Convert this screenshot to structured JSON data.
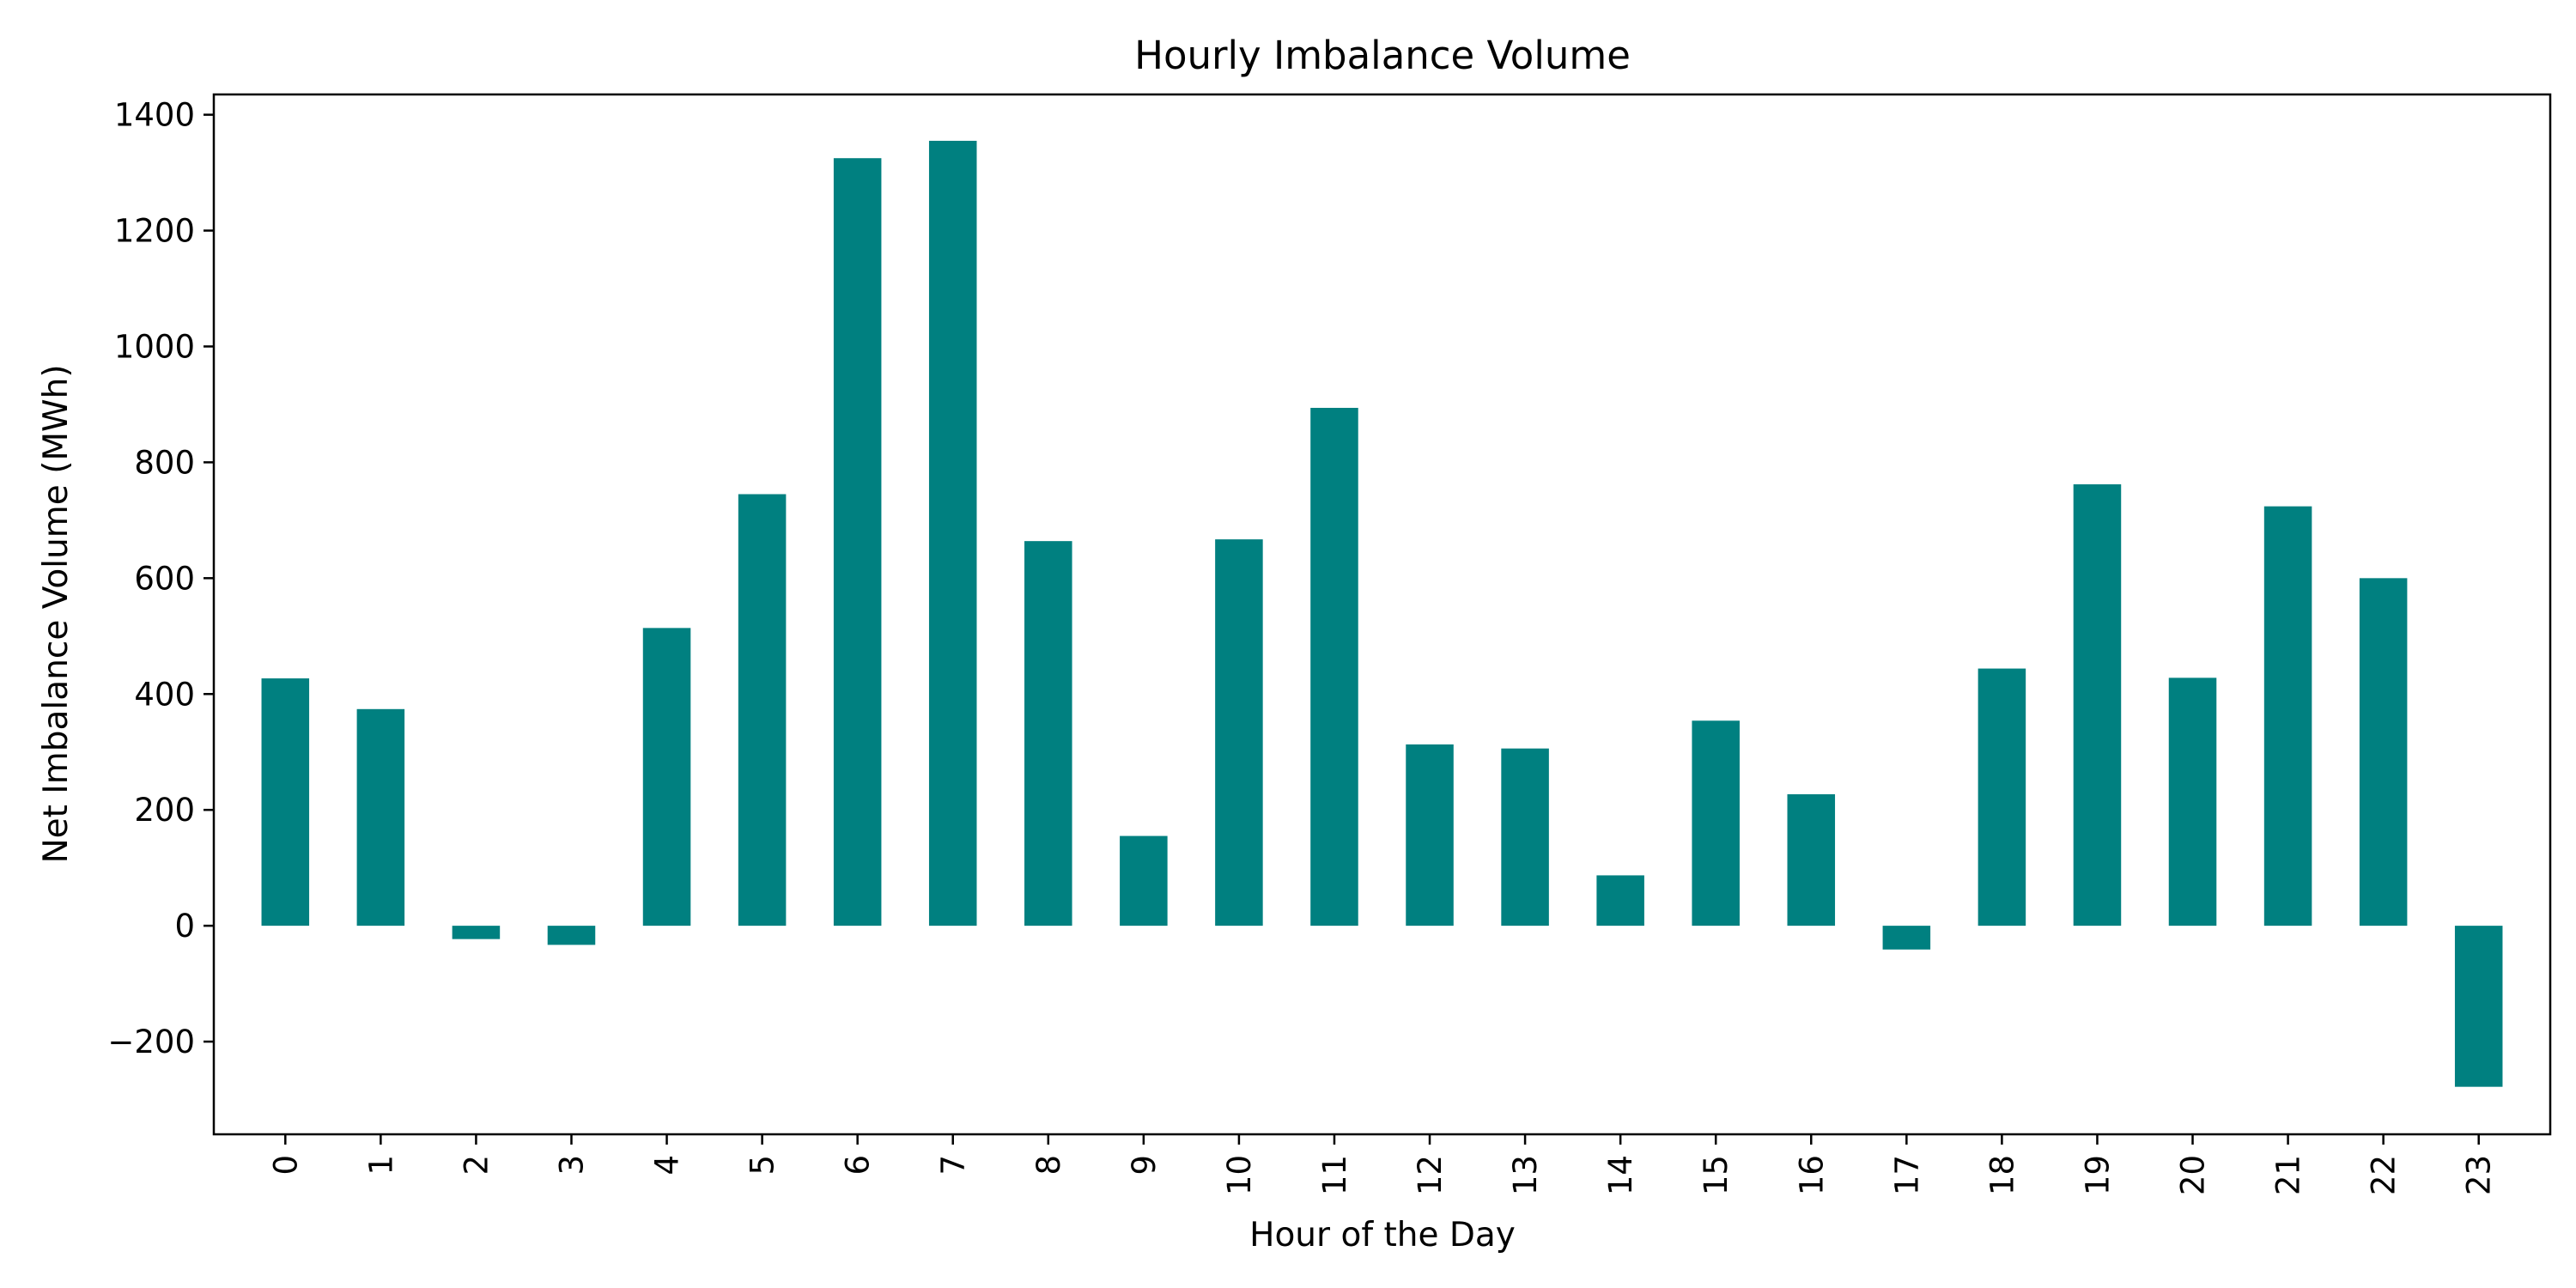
{
  "chart_data": {
    "type": "bar",
    "title": "Hourly Imbalance Volume",
    "xlabel": "Hour of the Day",
    "ylabel": "Net Imbalance Volume (MWh)",
    "categories": [
      "0",
      "1",
      "2",
      "3",
      "4",
      "5",
      "6",
      "7",
      "8",
      "9",
      "10",
      "11",
      "12",
      "13",
      "14",
      "15",
      "16",
      "17",
      "18",
      "19",
      "20",
      "21",
      "22",
      "23"
    ],
    "values": [
      427,
      374,
      -23,
      -33,
      514,
      745,
      1325,
      1355,
      664,
      155,
      667,
      894,
      313,
      306,
      87,
      354,
      227,
      -41,
      444,
      762,
      428,
      724,
      600,
      -278
    ],
    "yticks": [
      -200,
      0,
      200,
      400,
      600,
      800,
      1000,
      1200,
      1400
    ],
    "ylim": [
      -360,
      1435
    ],
    "grid": false,
    "legend": false,
    "bar_color": "#008080"
  }
}
